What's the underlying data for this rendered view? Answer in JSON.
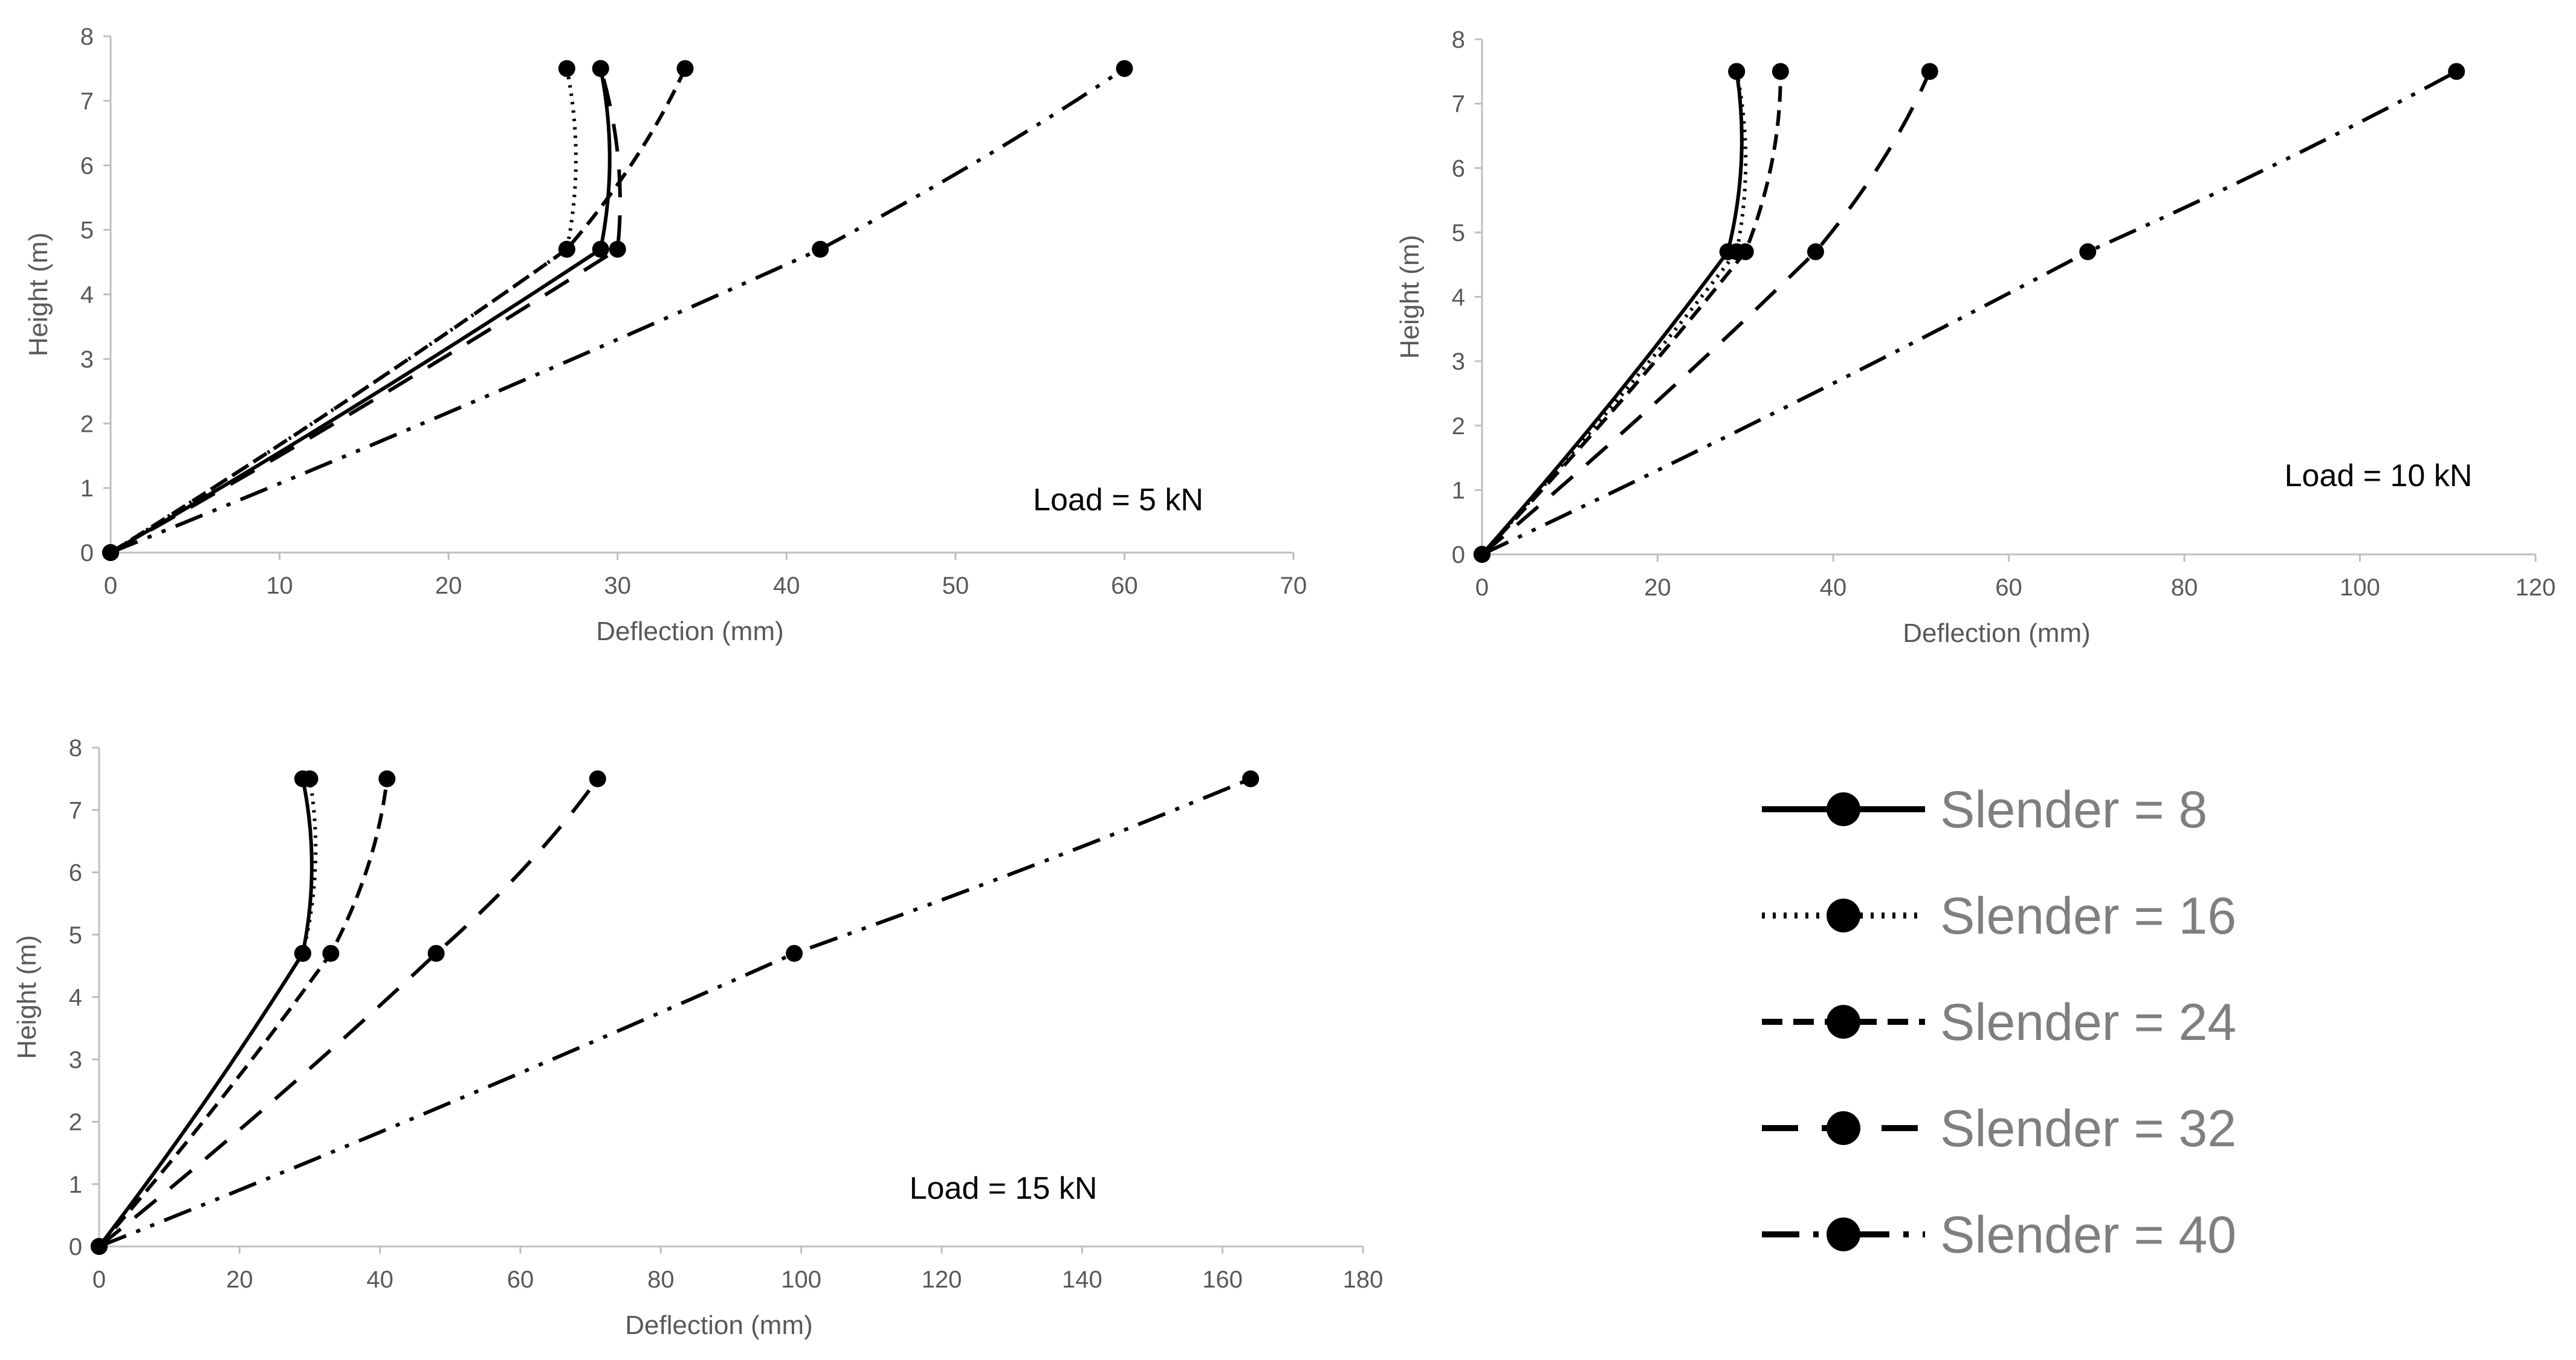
{
  "style": {
    "line_color": "#000000",
    "axis_color": "#bfbfbf",
    "text_color": "#595959",
    "legend_text_color": "#7f7f7f",
    "dash_patterns": [
      "solid",
      "dotted",
      "short-dash",
      "long-dash",
      "dash-dot-dot"
    ]
  },
  "legend": {
    "items": [
      "Slender = 8",
      "Slender = 16",
      "Slender = 24",
      "Slender = 32",
      "Slender = 40"
    ]
  },
  "chart_data": [
    {
      "type": "line",
      "title": "",
      "annotation": "Load = 5 kN",
      "xlabel": "Deflection (mm)",
      "ylabel": "Height (m)",
      "xlim": [
        0,
        70
      ],
      "ylim": [
        0,
        8
      ],
      "xticks": [
        0,
        10,
        20,
        30,
        40,
        50,
        60,
        70
      ],
      "yticks": [
        0,
        1,
        2,
        3,
        4,
        5,
        6,
        7,
        8
      ],
      "series": [
        {
          "name": "Slender = 8",
          "points": [
            [
              0,
              0
            ],
            [
              29,
              4.7
            ],
            [
              29,
              7.5
            ]
          ]
        },
        {
          "name": "Slender = 16",
          "points": [
            [
              0,
              0
            ],
            [
              27,
              4.7
            ],
            [
              27,
              7.5
            ]
          ]
        },
        {
          "name": "Slender = 24",
          "points": [
            [
              0,
              0
            ],
            [
              27,
              4.7
            ],
            [
              34,
              7.5
            ]
          ]
        },
        {
          "name": "Slender = 32",
          "points": [
            [
              0,
              0
            ],
            [
              30,
              4.7
            ],
            [
              29,
              7.5
            ]
          ]
        },
        {
          "name": "Slender = 40",
          "points": [
            [
              0,
              0
            ],
            [
              42,
              4.7
            ],
            [
              60,
              7.5
            ]
          ]
        }
      ]
    },
    {
      "type": "line",
      "title": "",
      "annotation": "Load = 10 kN",
      "xlabel": "Deflection (mm)",
      "ylabel": "Height (m)",
      "xlim": [
        0,
        120
      ],
      "ylim": [
        0,
        8
      ],
      "xticks": [
        0,
        20,
        40,
        60,
        80,
        100,
        120
      ],
      "yticks": [
        0,
        1,
        2,
        3,
        4,
        5,
        6,
        7,
        8
      ],
      "series": [
        {
          "name": "Slender = 8",
          "points": [
            [
              0,
              0
            ],
            [
              28,
              4.7
            ],
            [
              29,
              7.5
            ]
          ]
        },
        {
          "name": "Slender = 16",
          "points": [
            [
              0,
              0
            ],
            [
              29,
              4.7
            ],
            [
              29,
              7.5
            ]
          ]
        },
        {
          "name": "Slender = 24",
          "points": [
            [
              0,
              0
            ],
            [
              30,
              4.7
            ],
            [
              34,
              7.5
            ]
          ]
        },
        {
          "name": "Slender = 32",
          "points": [
            [
              0,
              0
            ],
            [
              38,
              4.7
            ],
            [
              51,
              7.5
            ]
          ]
        },
        {
          "name": "Slender = 40",
          "points": [
            [
              0,
              0
            ],
            [
              69,
              4.7
            ],
            [
              111,
              7.5
            ]
          ]
        }
      ]
    },
    {
      "type": "line",
      "title": "",
      "annotation": "Load = 15 kN",
      "xlabel": "Deflection (mm)",
      "ylabel": "Height (m)",
      "xlim": [
        0,
        180
      ],
      "ylim": [
        0,
        8
      ],
      "xticks": [
        0,
        20,
        40,
        60,
        80,
        100,
        120,
        140,
        160,
        180
      ],
      "yticks": [
        0,
        1,
        2,
        3,
        4,
        5,
        6,
        7,
        8
      ],
      "series": [
        {
          "name": "Slender = 8",
          "points": [
            [
              0,
              0
            ],
            [
              29,
              4.7
            ],
            [
              29,
              7.5
            ]
          ]
        },
        {
          "name": "Slender = 16",
          "points": [
            [
              0,
              0
            ],
            [
              29,
              4.7
            ],
            [
              30,
              7.5
            ]
          ]
        },
        {
          "name": "Slender = 24",
          "points": [
            [
              0,
              0
            ],
            [
              33,
              4.7
            ],
            [
              41,
              7.5
            ]
          ]
        },
        {
          "name": "Slender = 32",
          "points": [
            [
              0,
              0
            ],
            [
              48,
              4.7
            ],
            [
              71,
              7.5
            ]
          ]
        },
        {
          "name": "Slender = 40",
          "points": [
            [
              0,
              0
            ],
            [
              99,
              4.7
            ],
            [
              164,
              7.5
            ]
          ]
        }
      ]
    }
  ]
}
